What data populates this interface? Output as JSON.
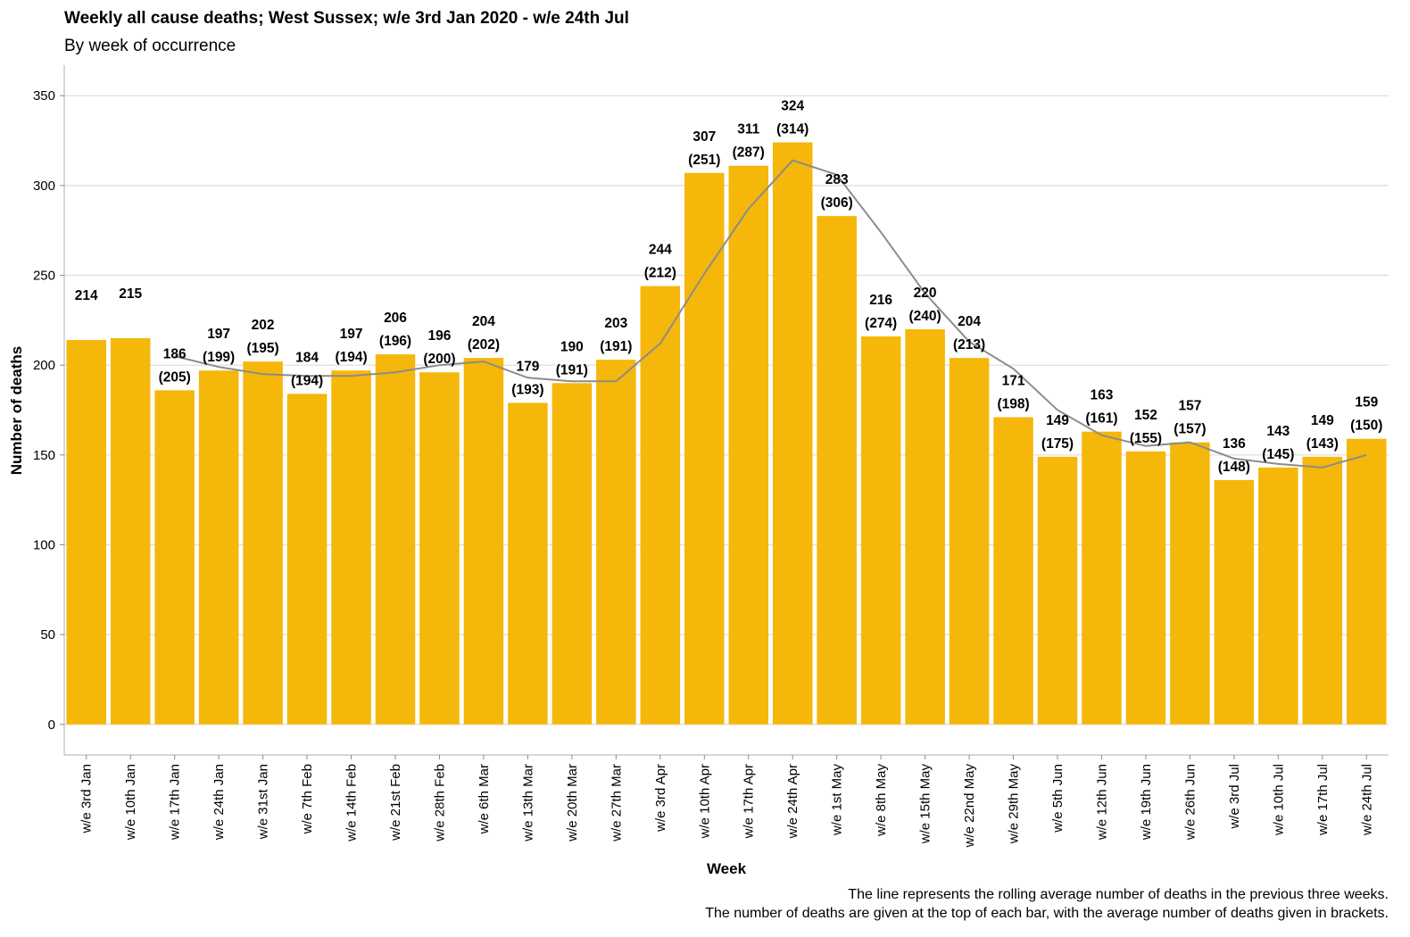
{
  "chart_data": {
    "type": "bar",
    "title": "Weekly all cause deaths; West Sussex; w/e 3rd Jan 2020 - w/e 24th Jul",
    "subtitle": "By week of occurrence",
    "xlabel": "Week",
    "ylabel": "Number of deaths",
    "ylim": [
      -17,
      367
    ],
    "yticks": [
      0,
      50,
      100,
      150,
      200,
      250,
      300,
      350
    ],
    "categories": [
      "w/e 3rd Jan",
      "w/e 10th Jan",
      "w/e 17th Jan",
      "w/e 24th Jan",
      "w/e 31st Jan",
      "w/e 7th Feb",
      "w/e 14th Feb",
      "w/e 21st Feb",
      "w/e 28th Feb",
      "w/e 6th Mar",
      "w/e 13th Mar",
      "w/e 20th Mar",
      "w/e 27th Mar",
      "w/e 3rd Apr",
      "w/e 10th Apr",
      "w/e 17th Apr",
      "w/e 24th Apr",
      "w/e 1st May",
      "w/e 8th May",
      "w/e 15th May",
      "w/e 22nd May",
      "w/e 29th May",
      "w/e 5th Jun",
      "w/e 12th Jun",
      "w/e 19th Jun",
      "w/e 26th Jun",
      "w/e 3rd Jul",
      "w/e 10th Jul",
      "w/e 17th Jul",
      "w/e 24th Jul"
    ],
    "series": [
      {
        "values": [
          214,
          215,
          186,
          197,
          202,
          184,
          197,
          206,
          196,
          204,
          179,
          190,
          203,
          244,
          307,
          311,
          324,
          283,
          216,
          220,
          204,
          171,
          149,
          163,
          152,
          157,
          136,
          143,
          149,
          159
        ],
        "color": "#f5b70a"
      },
      {
        "type": "line",
        "values": [
          null,
          null,
          205,
          199,
          195,
          194,
          194,
          196,
          200,
          202,
          193,
          191,
          191,
          212,
          251,
          287,
          314,
          306,
          274,
          240,
          213,
          198,
          175,
          161,
          155,
          157,
          148,
          145,
          143,
          150
        ],
        "color": "#8c8c8c"
      }
    ],
    "grid": true,
    "gridline_color": "#dcdcdc",
    "caption": [
      "The line represents the rolling average number of deaths in the previous three weeks.",
      "The number of deaths are given at the top of each bar, with the average number of deaths given in brackets."
    ]
  }
}
